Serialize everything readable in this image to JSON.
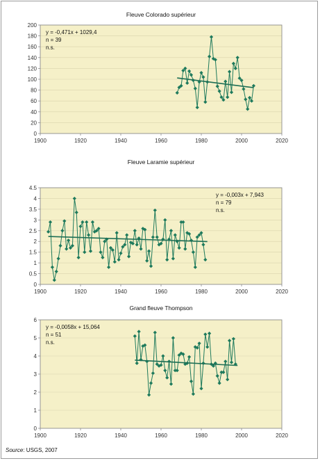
{
  "source": {
    "label": "Source",
    "text": ": USGS, 2007"
  },
  "colors": {
    "plot_bg": "#f5f0c8",
    "grid": "#d9d3ad",
    "axis": "#8c8c8c",
    "series": "#1e7a5c",
    "trend": "#1e6f55"
  },
  "chart_data": [
    {
      "type": "line",
      "title": "Fleuve Colorado supérieur",
      "xlim": [
        1900,
        2020
      ],
      "ylim": [
        0,
        200
      ],
      "xticks": [
        "1900",
        "1920",
        "1940",
        "1960",
        "1980",
        "2000",
        "2020"
      ],
      "yticks": [
        "0",
        "20",
        "40",
        "60",
        "80",
        "100",
        "120",
        "140",
        "160",
        "180",
        "200"
      ],
      "annotation": {
        "equation": "y = -0,471x + 1029,4",
        "n": "n = 39",
        "sig": "n.s."
      },
      "annotation_position": "top-left",
      "trend": {
        "slope": -0.471,
        "intercept": 1029.4,
        "x_range": [
          1968,
          2006
        ]
      },
      "series": [
        {
          "x": [
            1968,
            1969,
            1970,
            1971,
            1972,
            1973,
            1974,
            1975,
            1976,
            1977,
            1978,
            1979,
            1980,
            1981,
            1982,
            1983,
            1984,
            1985,
            1986,
            1987,
            1988,
            1989,
            1990,
            1991,
            1992,
            1993,
            1994,
            1995,
            1996,
            1997,
            1998,
            1999,
            2000,
            2001,
            2002,
            2003,
            2004,
            2005,
            2006
          ],
          "y": [
            75,
            85,
            88,
            116,
            120,
            93,
            115,
            108,
            98,
            83,
            48,
            95,
            112,
            104,
            58,
            95,
            142,
            178,
            138,
            136,
            87,
            78,
            67,
            62,
            96,
            67,
            114,
            76,
            129,
            120,
            140,
            102,
            98,
            82,
            63,
            45,
            66,
            60,
            88
          ]
        }
      ]
    },
    {
      "type": "line",
      "title": "Fleuve Laramie supérieur",
      "xlim": [
        1900,
        2020
      ],
      "ylim": [
        0,
        4.5
      ],
      "xticks": [
        "1900",
        "1920",
        "1940",
        "1960",
        "1980",
        "2000",
        "2020"
      ],
      "yticks": [
        "0",
        "0.5",
        "1",
        "1.5",
        "2",
        "2.5",
        "3",
        "3.5",
        "4",
        "4.5"
      ],
      "annotation": {
        "equation": "y = -0,003x + 7,943",
        "n": "n = 79",
        "sig": "n.s."
      },
      "annotation_position": "top-right",
      "trend": {
        "slope": -0.003,
        "intercept": 7.943,
        "x_range": [
          1904,
          1983
        ]
      },
      "series": [
        {
          "x": [
            1904,
            1905,
            1906,
            1907,
            1908,
            1909,
            1910,
            1911,
            1912,
            1913,
            1914,
            1915,
            1916,
            1917,
            1918,
            1919,
            1920,
            1921,
            1922,
            1923,
            1924,
            1925,
            1926,
            1927,
            1928,
            1929,
            1930,
            1931,
            1932,
            1933,
            1934,
            1935,
            1936,
            1937,
            1938,
            1939,
            1940,
            1941,
            1942,
            1943,
            1944,
            1945,
            1946,
            1947,
            1948,
            1949,
            1950,
            1951,
            1952,
            1953,
            1954,
            1955,
            1956,
            1957,
            1958,
            1959,
            1960,
            1961,
            1962,
            1963,
            1964,
            1965,
            1966,
            1967,
            1968,
            1969,
            1970,
            1971,
            1972,
            1973,
            1974,
            1975,
            1976,
            1977,
            1978,
            1979,
            1980,
            1981,
            1982
          ],
          "y": [
            2.45,
            2.9,
            0.8,
            0.2,
            0.6,
            1.2,
            1.8,
            2.5,
            2.95,
            1.65,
            2.05,
            1.7,
            1.8,
            4.0,
            3.35,
            1.25,
            2.7,
            2.9,
            1.5,
            2.9,
            2.3,
            1.55,
            2.9,
            2.45,
            2.5,
            2.6,
            1.5,
            1.25,
            2.0,
            2.1,
            0.8,
            1.7,
            1.6,
            1.05,
            2.4,
            1.15,
            1.45,
            1.75,
            1.85,
            2.3,
            1.3,
            1.95,
            1.9,
            2.5,
            1.85,
            2.15,
            1.65,
            2.6,
            2.55,
            1.1,
            1.55,
            0.85,
            2.2,
            3.45,
            2.2,
            1.85,
            1.9,
            2.1,
            3.0,
            1.15,
            2.1,
            2.5,
            1.2,
            2.3,
            2.0,
            1.7,
            2.9,
            2.9,
            1.65,
            2.4,
            2.35,
            2.05,
            1.5,
            0.8,
            2.2,
            2.3,
            2.4,
            1.85,
            1.15
          ]
        }
      ]
    },
    {
      "type": "line",
      "title": "Grand fleuve Thompson",
      "xlim": [
        1900,
        2020
      ],
      "ylim": [
        0,
        6
      ],
      "xticks": [
        "1900",
        "1920",
        "1940",
        "1960",
        "1980",
        "2000",
        "2020"
      ],
      "yticks": [
        "0",
        "1",
        "2",
        "3",
        "4",
        "5",
        "6"
      ],
      "annotation": {
        "equation": "y = -0,0058x + 15,064",
        "n": "n = 51",
        "sig": "n.s."
      },
      "annotation_position": "top-left",
      "trend": {
        "slope": -0.0058,
        "intercept": 15.064,
        "x_range": [
          1947,
          1998
        ]
      },
      "series": [
        {
          "x": [
            1947,
            1948,
            1949,
            1950,
            1951,
            1952,
            1953,
            1954,
            1955,
            1956,
            1957,
            1958,
            1959,
            1960,
            1961,
            1962,
            1963,
            1964,
            1965,
            1966,
            1967,
            1968,
            1969,
            1970,
            1971,
            1972,
            1973,
            1974,
            1975,
            1976,
            1977,
            1978,
            1979,
            1980,
            1981,
            1982,
            1983,
            1984,
            1985,
            1986,
            1987,
            1988,
            1989,
            1990,
            1991,
            1992,
            1993,
            1994,
            1995,
            1996,
            1997
          ],
          "y": [
            5.1,
            3.6,
            5.35,
            3.8,
            4.55,
            4.6,
            3.7,
            1.85,
            2.5,
            3.05,
            5.3,
            3.55,
            3.45,
            3.5,
            4.0,
            3.2,
            2.8,
            3.7,
            2.45,
            5.0,
            3.2,
            3.2,
            4.05,
            4.15,
            4.1,
            3.55,
            3.6,
            3.95,
            2.6,
            1.9,
            4.5,
            4.45,
            4.7,
            2.2,
            3.6,
            5.2,
            4.5,
            5.25,
            3.55,
            3.45,
            3.6,
            2.9,
            2.5,
            3.1,
            3.1,
            3.7,
            2.7,
            4.85,
            3.65,
            4.95,
            3.55
          ]
        }
      ]
    }
  ]
}
